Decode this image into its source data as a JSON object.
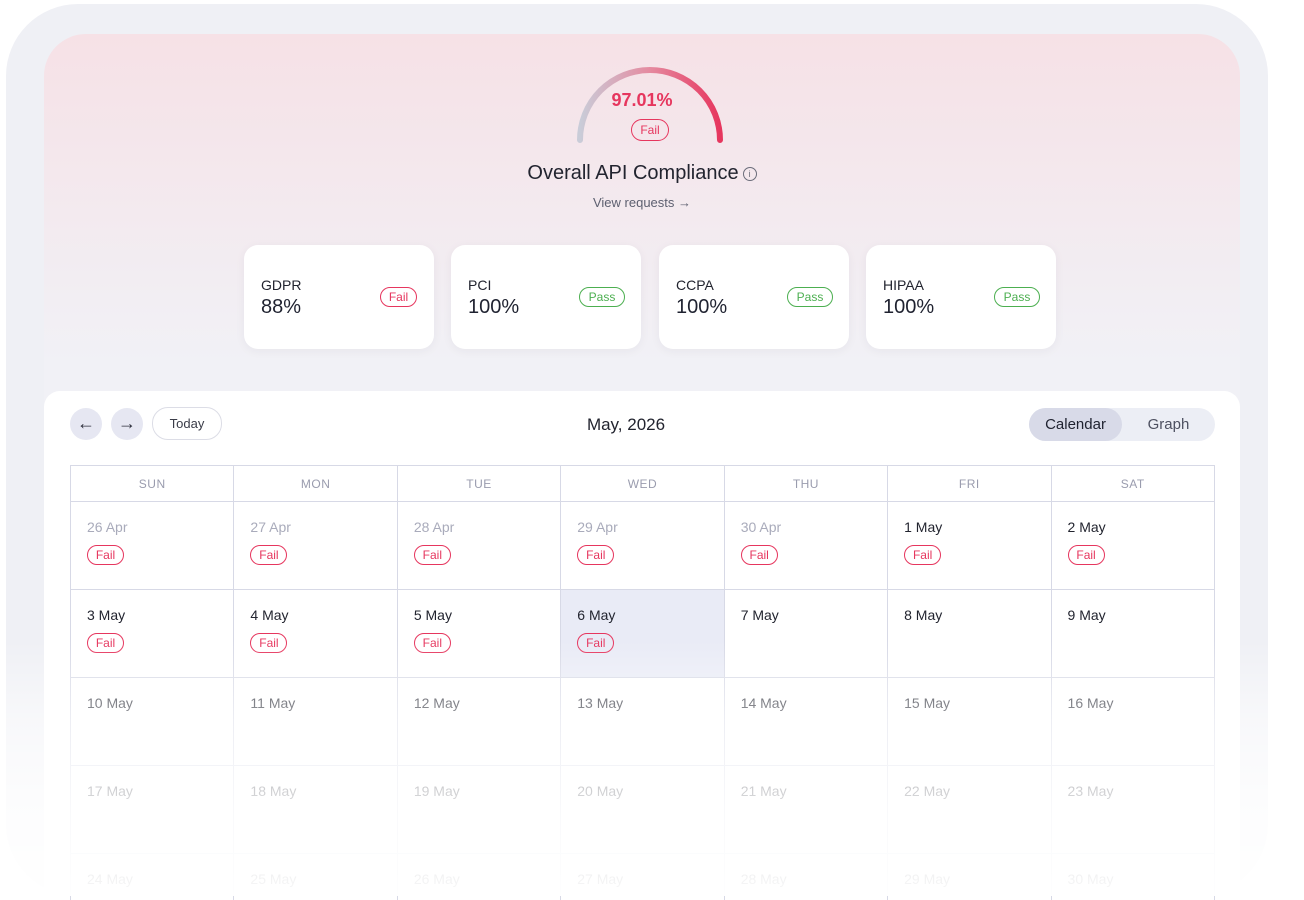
{
  "compliance": {
    "percent_label": "97.01%",
    "percent": 97.01,
    "status": "Fail",
    "title": "Overall API Compliance",
    "info_icon": "info-icon",
    "view_requests": "View requests →"
  },
  "cards": [
    {
      "name": "GDPR",
      "value": "88%",
      "status": "Fail"
    },
    {
      "name": "PCI",
      "value": "100%",
      "status": "Pass"
    },
    {
      "name": "CCPA",
      "value": "100%",
      "status": "Pass"
    },
    {
      "name": "HIPAA",
      "value": "100%",
      "status": "Pass"
    }
  ],
  "calendar": {
    "prev_icon": "←",
    "next_icon": "→",
    "today_label": "Today",
    "month_label": "May, 2026",
    "views": [
      "Calendar",
      "Graph"
    ],
    "active_view": "Calendar",
    "weekdays": [
      "SUN",
      "MON",
      "TUE",
      "WED",
      "THU",
      "FRI",
      "SAT"
    ],
    "weeks": [
      [
        {
          "date": "26 Apr",
          "status": "Fail",
          "muted": true
        },
        {
          "date": "27 Apr",
          "status": "Fail",
          "muted": true
        },
        {
          "date": "28 Apr",
          "status": "Fail",
          "muted": true
        },
        {
          "date": "29 Apr",
          "status": "Fail",
          "muted": true
        },
        {
          "date": "30 Apr",
          "status": "Fail",
          "muted": true
        },
        {
          "date": "1 May",
          "status": "Fail"
        },
        {
          "date": "2 May",
          "status": "Fail"
        }
      ],
      [
        {
          "date": "3 May",
          "status": "Fail"
        },
        {
          "date": "4 May",
          "status": "Fail"
        },
        {
          "date": "5 May",
          "status": "Fail"
        },
        {
          "date": "6 May",
          "status": "Fail",
          "selected": true
        },
        {
          "date": "7 May"
        },
        {
          "date": "8 May"
        },
        {
          "date": "9 May"
        }
      ],
      [
        {
          "date": "10 May"
        },
        {
          "date": "11 May"
        },
        {
          "date": "12 May"
        },
        {
          "date": "13 May"
        },
        {
          "date": "14 May"
        },
        {
          "date": "15 May"
        },
        {
          "date": "16 May"
        }
      ],
      [
        {
          "date": "17 May"
        },
        {
          "date": "18 May"
        },
        {
          "date": "19 May"
        },
        {
          "date": "20 May"
        },
        {
          "date": "21 May"
        },
        {
          "date": "22 May"
        },
        {
          "date": "23 May"
        }
      ],
      [
        {
          "date": "24 May"
        },
        {
          "date": "25 May"
        },
        {
          "date": "26 May"
        },
        {
          "date": "27 May"
        },
        {
          "date": "28 May"
        },
        {
          "date": "29 May"
        },
        {
          "date": "30 May"
        }
      ]
    ]
  },
  "colors": {
    "fail": "#e6365e",
    "pass": "#4caf50",
    "selected_day": "#e9ebf6"
  }
}
